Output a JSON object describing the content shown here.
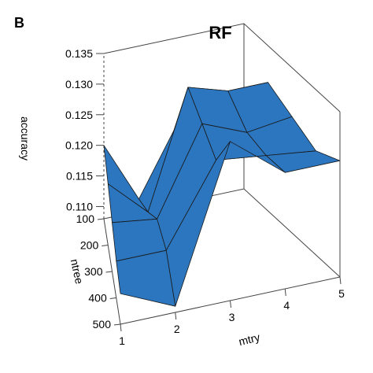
{
  "panel_label": "B",
  "chart_data": {
    "type": "surface",
    "title": "RF",
    "xlabel": "mtry",
    "ylabel": "ntree",
    "zlabel": "accuracy",
    "x_ticks": [
      "1",
      "2",
      "3",
      "4",
      "5"
    ],
    "y_ticks": [
      "100",
      "200",
      "300",
      "400",
      "500"
    ],
    "z_ticks": [
      "0.110",
      "0.115",
      "0.120",
      "0.125",
      "0.130",
      "0.135"
    ],
    "x": [
      1,
      2,
      3,
      4,
      5
    ],
    "y": [
      100,
      200,
      300,
      400,
      500
    ],
    "zlim": [
      0.108,
      0.135
    ],
    "z": [
      [
        0.12,
        0.11,
        0.12,
        0.12,
        0.12
      ],
      [
        0.118,
        0.112,
        0.131,
        0.129,
        0.129
      ],
      [
        0.116,
        0.115,
        0.129,
        0.126,
        0.127
      ],
      [
        0.114,
        0.114,
        0.127,
        0.126,
        0.125
      ],
      [
        0.113,
        0.109,
        0.134,
        0.127,
        0.127
      ]
    ],
    "surface_color": "#2b76bf",
    "edge_color": "#1a1a1a",
    "box": true,
    "grid": false
  }
}
